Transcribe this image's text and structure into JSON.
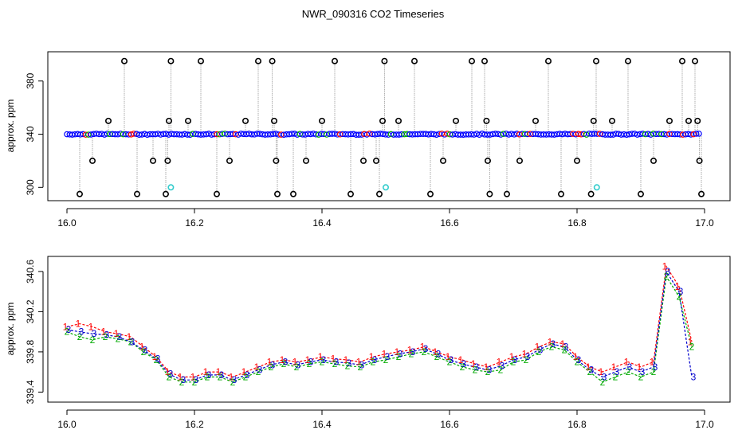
{
  "title": "NWR_090316  CO2 Timeseries",
  "chart_data": [
    {
      "type": "scatter",
      "ylabel": "approx. ppm",
      "xlim": [
        16.0,
        17.0
      ],
      "ylim": [
        290,
        402
      ],
      "xticks": [
        "16.0",
        "16.2",
        "16.4",
        "16.6",
        "16.8",
        "17.0"
      ],
      "xtick_values": [
        16.0,
        16.2,
        16.4,
        16.6,
        16.8,
        17.0
      ],
      "yticks": [
        "300",
        "340",
        "380"
      ],
      "ytick_values": [
        300,
        340,
        380
      ],
      "baseline_ppm": 340,
      "baseline_x_range": [
        16.0,
        16.995
      ],
      "marker_colors": [
        "#0000ff",
        "#00aa00",
        "#ff0000"
      ],
      "calibration_points": {
        "color": "#33cccc",
        "values": [
          [
            16.163,
            300
          ],
          [
            16.5,
            300
          ],
          [
            16.831,
            300
          ]
        ]
      },
      "excursions": {
        "color": "#000000",
        "connector_color": "#999999",
        "values": [
          [
            16.02,
            295
          ],
          [
            16.04,
            320
          ],
          [
            16.065,
            350
          ],
          [
            16.09,
            395
          ],
          [
            16.11,
            295
          ],
          [
            16.135,
            320
          ],
          [
            16.155,
            295
          ],
          [
            16.158,
            320
          ],
          [
            16.16,
            350
          ],
          [
            16.163,
            395
          ],
          [
            16.19,
            350
          ],
          [
            16.21,
            395
          ],
          [
            16.235,
            295
          ],
          [
            16.255,
            320
          ],
          [
            16.28,
            350
          ],
          [
            16.3,
            395
          ],
          [
            16.322,
            395
          ],
          [
            16.325,
            350
          ],
          [
            16.328,
            320
          ],
          [
            16.33,
            295
          ],
          [
            16.355,
            295
          ],
          [
            16.375,
            320
          ],
          [
            16.4,
            350
          ],
          [
            16.42,
            395
          ],
          [
            16.445,
            295
          ],
          [
            16.465,
            320
          ],
          [
            16.485,
            320
          ],
          [
            16.49,
            295
          ],
          [
            16.495,
            350
          ],
          [
            16.498,
            395
          ],
          [
            16.52,
            350
          ],
          [
            16.545,
            395
          ],
          [
            16.57,
            295
          ],
          [
            16.59,
            320
          ],
          [
            16.61,
            350
          ],
          [
            16.635,
            395
          ],
          [
            16.655,
            395
          ],
          [
            16.658,
            350
          ],
          [
            16.66,
            320
          ],
          [
            16.663,
            295
          ],
          [
            16.69,
            295
          ],
          [
            16.71,
            320
          ],
          [
            16.735,
            350
          ],
          [
            16.755,
            395
          ],
          [
            16.775,
            295
          ],
          [
            16.8,
            320
          ],
          [
            16.822,
            295
          ],
          [
            16.826,
            350
          ],
          [
            16.83,
            395
          ],
          [
            16.855,
            350
          ],
          [
            16.88,
            395
          ],
          [
            16.9,
            295
          ],
          [
            16.92,
            320
          ],
          [
            16.945,
            350
          ],
          [
            16.965,
            395
          ],
          [
            16.975,
            350
          ],
          [
            16.985,
            395
          ],
          [
            16.989,
            350
          ],
          [
            16.992,
            320
          ],
          [
            16.995,
            295
          ]
        ]
      }
    },
    {
      "type": "line",
      "ylabel": "approx. ppm",
      "xlim": [
        16.0,
        17.0
      ],
      "ylim": [
        339.3,
        340.75
      ],
      "xticks": [
        "16.0",
        "16.2",
        "16.4",
        "16.6",
        "16.8",
        "17.0"
      ],
      "xtick_values": [
        16.0,
        16.2,
        16.4,
        16.6,
        16.8,
        17.0
      ],
      "yticks": [
        "339.4",
        "339.8",
        "340.2",
        "340.6"
      ],
      "ytick_values": [
        339.4,
        339.8,
        340.2,
        340.6
      ],
      "point_labels": [
        "1",
        "2",
        "3"
      ],
      "series": [
        {
          "label": "1",
          "color": "#ff0000",
          "values": [
            [
              16.0,
              340.05
            ],
            [
              16.02,
              340.08
            ],
            [
              16.04,
              340.05
            ],
            [
              16.06,
              340.0
            ],
            [
              16.08,
              339.98
            ],
            [
              16.1,
              339.95
            ],
            [
              16.12,
              339.85
            ],
            [
              16.14,
              339.75
            ],
            [
              16.16,
              339.6
            ],
            [
              16.18,
              339.55
            ],
            [
              16.2,
              339.55
            ],
            [
              16.22,
              339.6
            ],
            [
              16.24,
              339.6
            ],
            [
              16.26,
              339.55
            ],
            [
              16.28,
              339.6
            ],
            [
              16.3,
              339.65
            ],
            [
              16.32,
              339.7
            ],
            [
              16.34,
              339.72
            ],
            [
              16.36,
              339.7
            ],
            [
              16.38,
              339.72
            ],
            [
              16.4,
              339.75
            ],
            [
              16.42,
              339.73
            ],
            [
              16.44,
              339.72
            ],
            [
              16.46,
              339.7
            ],
            [
              16.48,
              339.75
            ],
            [
              16.5,
              339.78
            ],
            [
              16.52,
              339.8
            ],
            [
              16.54,
              339.82
            ],
            [
              16.56,
              339.85
            ],
            [
              16.58,
              339.8
            ],
            [
              16.6,
              339.75
            ],
            [
              16.62,
              339.72
            ],
            [
              16.64,
              339.68
            ],
            [
              16.66,
              339.65
            ],
            [
              16.68,
              339.7
            ],
            [
              16.7,
              339.75
            ],
            [
              16.72,
              339.78
            ],
            [
              16.74,
              339.85
            ],
            [
              16.76,
              339.9
            ],
            [
              16.78,
              339.88
            ],
            [
              16.8,
              339.75
            ],
            [
              16.82,
              339.65
            ],
            [
              16.84,
              339.6
            ],
            [
              16.86,
              339.65
            ],
            [
              16.88,
              339.7
            ],
            [
              16.9,
              339.65
            ],
            [
              16.92,
              339.7
            ],
            [
              16.94,
              340.65
            ],
            [
              16.96,
              340.45
            ],
            [
              16.98,
              339.9
            ]
          ]
        },
        {
          "label": "2",
          "color": "#00aa00",
          "values": [
            [
              16.0,
              340.0
            ],
            [
              16.02,
              339.95
            ],
            [
              16.04,
              339.92
            ],
            [
              16.06,
              339.95
            ],
            [
              16.08,
              339.93
            ],
            [
              16.1,
              339.9
            ],
            [
              16.12,
              339.8
            ],
            [
              16.14,
              339.72
            ],
            [
              16.16,
              339.55
            ],
            [
              16.18,
              339.5
            ],
            [
              16.2,
              339.5
            ],
            [
              16.22,
              339.55
            ],
            [
              16.24,
              339.55
            ],
            [
              16.26,
              339.5
            ],
            [
              16.28,
              339.55
            ],
            [
              16.3,
              339.6
            ],
            [
              16.32,
              339.65
            ],
            [
              16.34,
              339.68
            ],
            [
              16.36,
              339.65
            ],
            [
              16.38,
              339.68
            ],
            [
              16.4,
              339.7
            ],
            [
              16.42,
              339.68
            ],
            [
              16.44,
              339.66
            ],
            [
              16.46,
              339.65
            ],
            [
              16.48,
              339.7
            ],
            [
              16.5,
              339.72
            ],
            [
              16.52,
              339.75
            ],
            [
              16.54,
              339.78
            ],
            [
              16.56,
              339.8
            ],
            [
              16.58,
              339.75
            ],
            [
              16.6,
              339.7
            ],
            [
              16.62,
              339.65
            ],
            [
              16.64,
              339.62
            ],
            [
              16.66,
              339.6
            ],
            [
              16.68,
              339.62
            ],
            [
              16.7,
              339.7
            ],
            [
              16.72,
              339.72
            ],
            [
              16.74,
              339.8
            ],
            [
              16.76,
              339.85
            ],
            [
              16.78,
              339.82
            ],
            [
              16.8,
              339.7
            ],
            [
              16.82,
              339.6
            ],
            [
              16.84,
              339.5
            ],
            [
              16.86,
              339.55
            ],
            [
              16.88,
              339.6
            ],
            [
              16.9,
              339.55
            ],
            [
              16.92,
              339.6
            ],
            [
              16.94,
              340.55
            ],
            [
              16.96,
              340.35
            ],
            [
              16.98,
              339.85
            ]
          ]
        },
        {
          "label": "3",
          "color": "#0000cc",
          "values": [
            [
              16.0,
              340.02
            ],
            [
              16.02,
              340.0
            ],
            [
              16.04,
              339.98
            ],
            [
              16.06,
              339.97
            ],
            [
              16.08,
              339.95
            ],
            [
              16.1,
              339.9
            ],
            [
              16.12,
              339.82
            ],
            [
              16.14,
              339.73
            ],
            [
              16.16,
              339.58
            ],
            [
              16.18,
              339.52
            ],
            [
              16.2,
              339.52
            ],
            [
              16.22,
              339.57
            ],
            [
              16.24,
              339.57
            ],
            [
              16.26,
              339.52
            ],
            [
              16.28,
              339.57
            ],
            [
              16.3,
              339.62
            ],
            [
              16.32,
              339.67
            ],
            [
              16.34,
              339.7
            ],
            [
              16.36,
              339.67
            ],
            [
              16.38,
              339.7
            ],
            [
              16.4,
              339.72
            ],
            [
              16.42,
              339.7
            ],
            [
              16.44,
              339.69
            ],
            [
              16.46,
              339.67
            ],
            [
              16.48,
              339.72
            ],
            [
              16.5,
              339.75
            ],
            [
              16.52,
              339.78
            ],
            [
              16.54,
              339.8
            ],
            [
              16.56,
              339.83
            ],
            [
              16.58,
              339.78
            ],
            [
              16.6,
              339.72
            ],
            [
              16.62,
              339.68
            ],
            [
              16.64,
              339.65
            ],
            [
              16.66,
              339.62
            ],
            [
              16.68,
              339.66
            ],
            [
              16.7,
              339.72
            ],
            [
              16.72,
              339.75
            ],
            [
              16.74,
              339.82
            ],
            [
              16.76,
              339.88
            ],
            [
              16.78,
              339.85
            ],
            [
              16.8,
              339.72
            ],
            [
              16.82,
              339.62
            ],
            [
              16.84,
              339.55
            ],
            [
              16.86,
              339.6
            ],
            [
              16.88,
              339.65
            ],
            [
              16.9,
              339.6
            ],
            [
              16.92,
              339.65
            ],
            [
              16.94,
              340.6
            ],
            [
              16.96,
              340.4
            ],
            [
              16.98,
              339.55
            ]
          ]
        }
      ]
    }
  ]
}
